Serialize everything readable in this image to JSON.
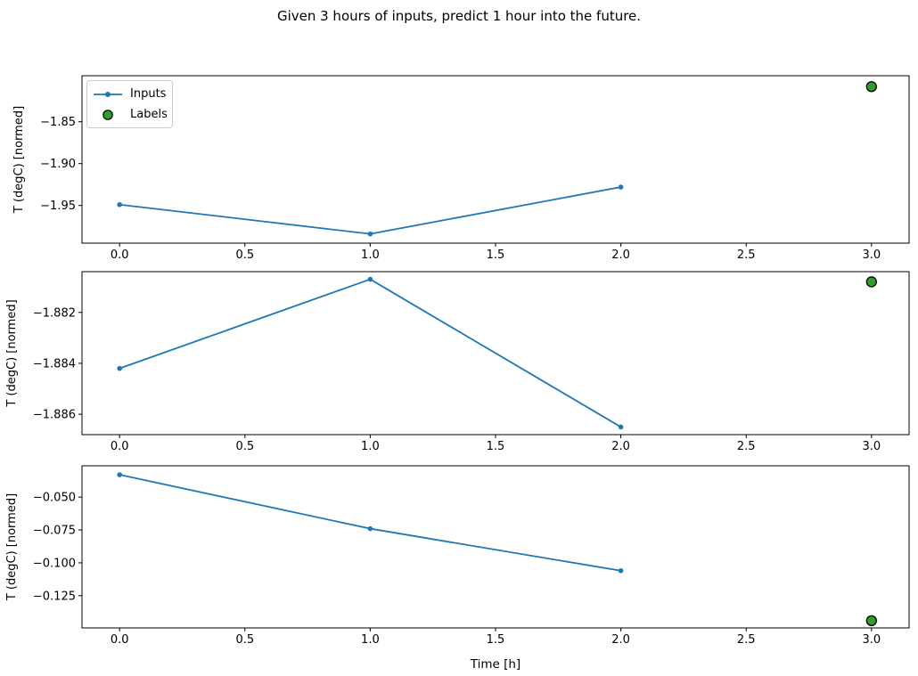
{
  "title": "Given 3 hours of inputs, predict 1 hour into the future.",
  "xlabel": "Time [h]",
  "ylabel": "T (degC) [normed]",
  "legend": {
    "items": [
      {
        "label": "Inputs",
        "type": "line-marker"
      },
      {
        "label": "Labels",
        "type": "circle"
      }
    ]
  },
  "colors": {
    "inputs": "#1f77b4",
    "labels": "#2ca02c",
    "label_edge": "#000000",
    "spine": "#000000",
    "text": "#000000",
    "legend_border": "#cccccc"
  },
  "chart_data": [
    {
      "type": "line",
      "ylabel": "T (degC) [normed]",
      "x": [
        0,
        1,
        2
      ],
      "series": [
        {
          "name": "Inputs",
          "values": [
            -1.949,
            -1.984,
            -1.928
          ]
        }
      ],
      "label_point": {
        "name": "Labels",
        "x": 3,
        "y": -1.808
      },
      "yticks": [
        -1.85,
        -1.9,
        -1.95
      ],
      "ytick_labels": [
        "−1.85",
        "−1.90",
        "−1.95"
      ],
      "ylim": [
        -1.995,
        -1.795
      ],
      "xticks": [
        0.0,
        0.5,
        1.0,
        1.5,
        2.0,
        2.5,
        3.0
      ],
      "xtick_labels": [
        "0.0",
        "0.5",
        "1.0",
        "1.5",
        "2.0",
        "2.5",
        "3.0"
      ],
      "xlim": [
        -0.15,
        3.15
      ],
      "grid": false,
      "legend_position": "upper left"
    },
    {
      "type": "line",
      "ylabel": "T (degC) [normed]",
      "x": [
        0,
        1,
        2
      ],
      "series": [
        {
          "name": "Inputs",
          "values": [
            -1.8842,
            -1.8807,
            -1.8865
          ]
        }
      ],
      "label_point": {
        "name": "Labels",
        "x": 3,
        "y": -1.8808
      },
      "yticks": [
        -1.882,
        -1.884,
        -1.886
      ],
      "ytick_labels": [
        "−1.882",
        "−1.884",
        "−1.886"
      ],
      "ylim": [
        -1.8868,
        -1.8804
      ],
      "xticks": [
        0.0,
        0.5,
        1.0,
        1.5,
        2.0,
        2.5,
        3.0
      ],
      "xtick_labels": [
        "0.0",
        "0.5",
        "1.0",
        "1.5",
        "2.0",
        "2.5",
        "3.0"
      ],
      "xlim": [
        -0.15,
        3.15
      ],
      "grid": false
    },
    {
      "type": "line",
      "ylabel": "T (degC) [normed]",
      "xlabel": "Time [h]",
      "x": [
        0,
        1,
        2
      ],
      "series": [
        {
          "name": "Inputs",
          "values": [
            -0.033,
            -0.074,
            -0.106
          ]
        }
      ],
      "label_point": {
        "name": "Labels",
        "x": 3,
        "y": -0.144
      },
      "yticks": [
        -0.05,
        -0.075,
        -0.1,
        -0.125
      ],
      "ytick_labels": [
        "−0.050",
        "−0.075",
        "−0.100",
        "−0.125"
      ],
      "ylim": [
        -0.1495,
        -0.0262
      ],
      "xticks": [
        0.0,
        0.5,
        1.0,
        1.5,
        2.0,
        2.5,
        3.0
      ],
      "xtick_labels": [
        "0.0",
        "0.5",
        "1.0",
        "1.5",
        "2.0",
        "2.5",
        "3.0"
      ],
      "xlim": [
        -0.15,
        3.15
      ],
      "grid": false
    }
  ]
}
